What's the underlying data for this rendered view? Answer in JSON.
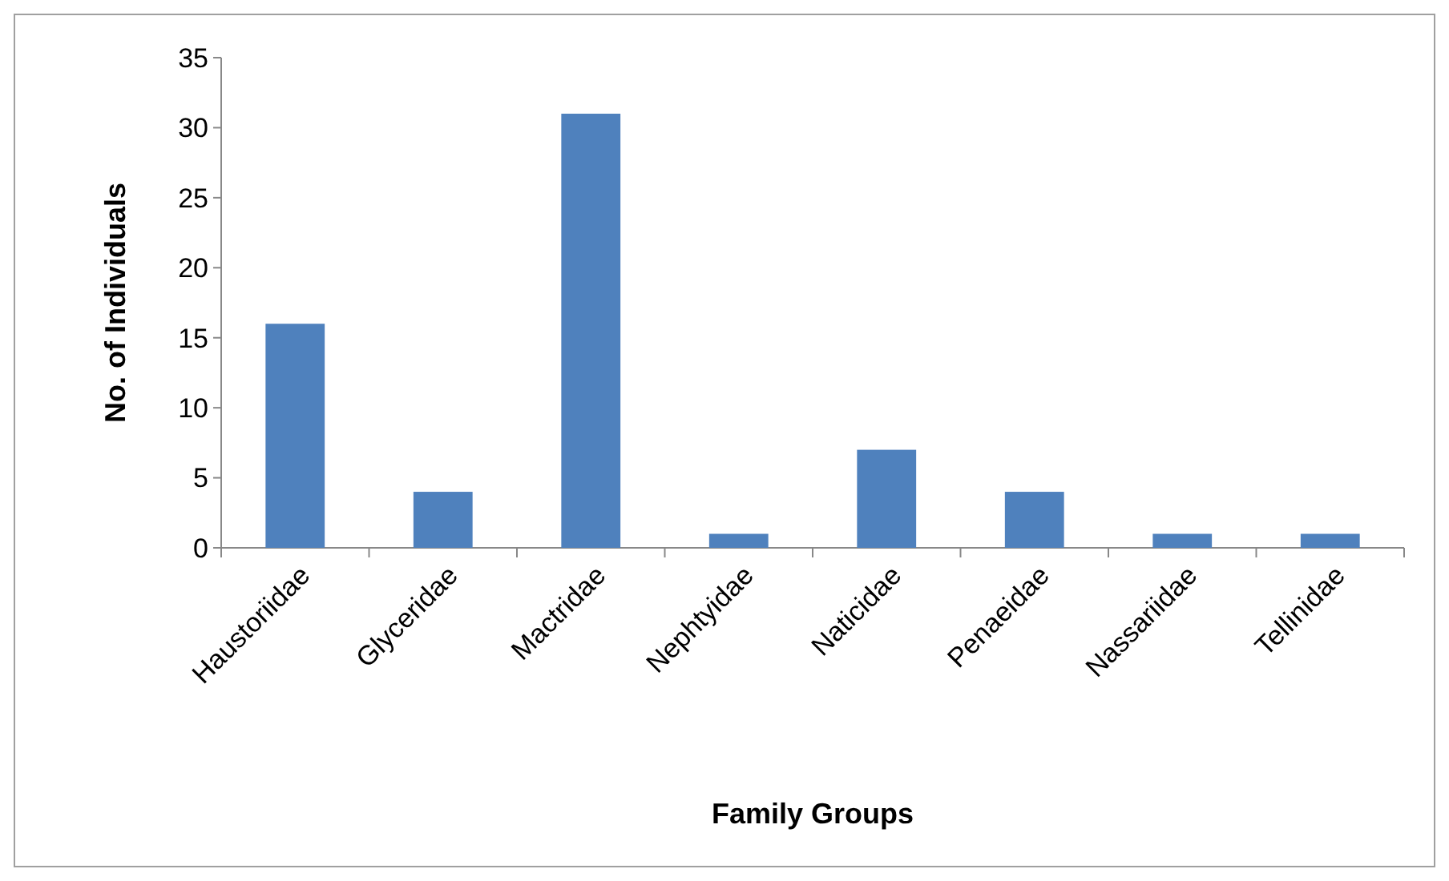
{
  "chart_data": {
    "type": "bar",
    "xlabel": "Family Groups",
    "ylabel": "No. of Individuals",
    "categories": [
      "Haustoriidae",
      "Glyceridae",
      "Mactridae",
      "Nephtyidae",
      "Naticidae",
      "Penaeidae",
      "Nassariidae",
      "Tellinidae"
    ],
    "values": [
      16,
      4,
      31,
      1,
      7,
      4,
      1,
      1
    ],
    "color": "#4f81bd",
    "ylim": [
      0,
      35
    ],
    "yticks": [
      0,
      5,
      10,
      15,
      20,
      25,
      30,
      35
    ]
  }
}
